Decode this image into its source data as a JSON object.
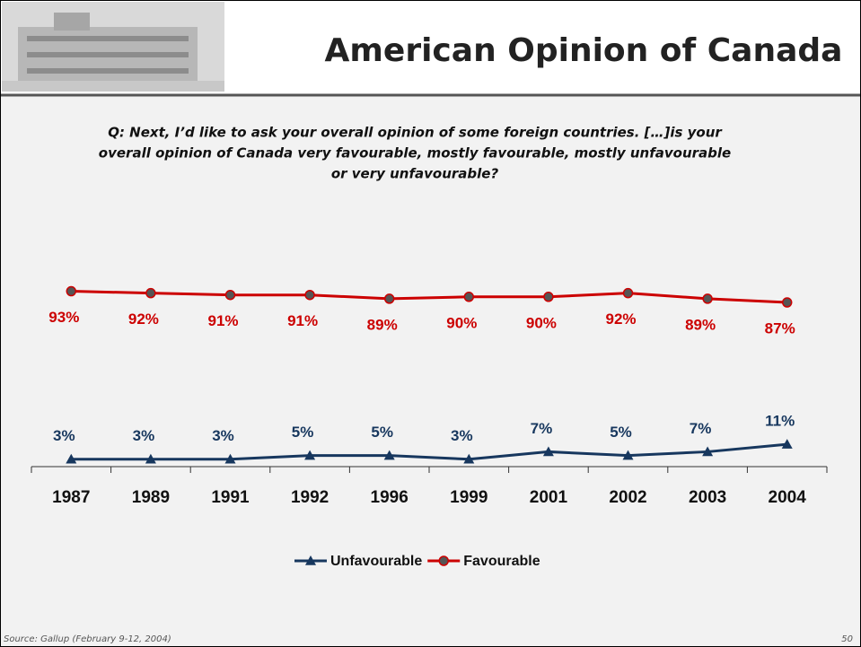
{
  "chart_data": {
    "type": "line",
    "title": "American Opinion of Canada",
    "subtitle": [
      "Q: Next, I’d like to ask your overall opinion of some foreign countries. […]is your",
      "overall opinion of Canada very favourable, mostly favourable, mostly unfavourable",
      "or very unfavourable?"
    ],
    "categories": [
      "1987",
      "1989",
      "1991",
      "1992",
      "1996",
      "1999",
      "2001",
      "2002",
      "2003",
      "2004"
    ],
    "series": [
      {
        "name": "Unfavourable",
        "color": "#17375e",
        "marker": "triangle",
        "values": [
          3,
          3,
          3,
          5,
          5,
          3,
          7,
          5,
          7,
          11
        ],
        "value_labels": [
          "3%",
          "3%",
          "3%",
          "5%",
          "5%",
          "3%",
          "7%",
          "5%",
          "7%",
          "11%"
        ]
      },
      {
        "name": "Favourable",
        "color": "#cc0000",
        "marker": "circle",
        "values": [
          93,
          92,
          91,
          91,
          89,
          90,
          90,
          92,
          89,
          87
        ],
        "value_labels": [
          "93%",
          "92%",
          "91%",
          "91%",
          "89%",
          "90%",
          "90%",
          "92%",
          "89%",
          "87%"
        ]
      }
    ],
    "ylim": [
      0,
      100
    ],
    "source": "Source: Gallup  (February 9-12, 2004)",
    "page_number": "50"
  }
}
